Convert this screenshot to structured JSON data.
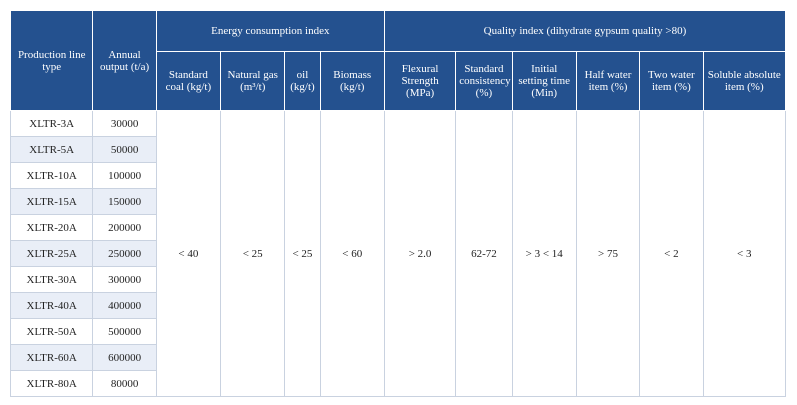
{
  "header": {
    "production_line_type": "Production line type",
    "annual_output": "Annual output (t/a)",
    "energy_group": "Energy consumption index",
    "quality_group": "Quality index (dihydrate gypsum quality >80)",
    "energy_columns": [
      "Standard coal (kg/t)",
      "Natural gas (m³/t)",
      "oil (kg/t)",
      "Biomass (kg/t)"
    ],
    "quality_columns": [
      "Flexural Strength (MPa)",
      "Standard consistency (%)",
      "Initial setting time (Min)",
      "Half water item (%)",
      "Two water item (%)",
      "Soluble absolute item (%)"
    ]
  },
  "table": {
    "rows": [
      [
        "XLTR-3A",
        "30000"
      ],
      [
        "XLTR-5A",
        "50000"
      ],
      [
        "XLTR-10A",
        "100000"
      ],
      [
        "XLTR-15A",
        "150000"
      ],
      [
        "XLTR-20A",
        "200000"
      ],
      [
        "XLTR-25A",
        "250000"
      ],
      [
        "XLTR-30A",
        "300000"
      ],
      [
        "XLTR-40A",
        "400000"
      ],
      [
        "XLTR-50A",
        "500000"
      ],
      [
        "XLTR-60A",
        "600000"
      ],
      [
        "XLTR-80A",
        "80000"
      ]
    ],
    "energy_values": [
      "< 40",
      "< 25",
      "< 25",
      "< 60"
    ],
    "quality_values": [
      "> 2.0",
      "62-72",
      "> 3 < 14",
      "> 75",
      "< 2",
      "< 3"
    ]
  }
}
